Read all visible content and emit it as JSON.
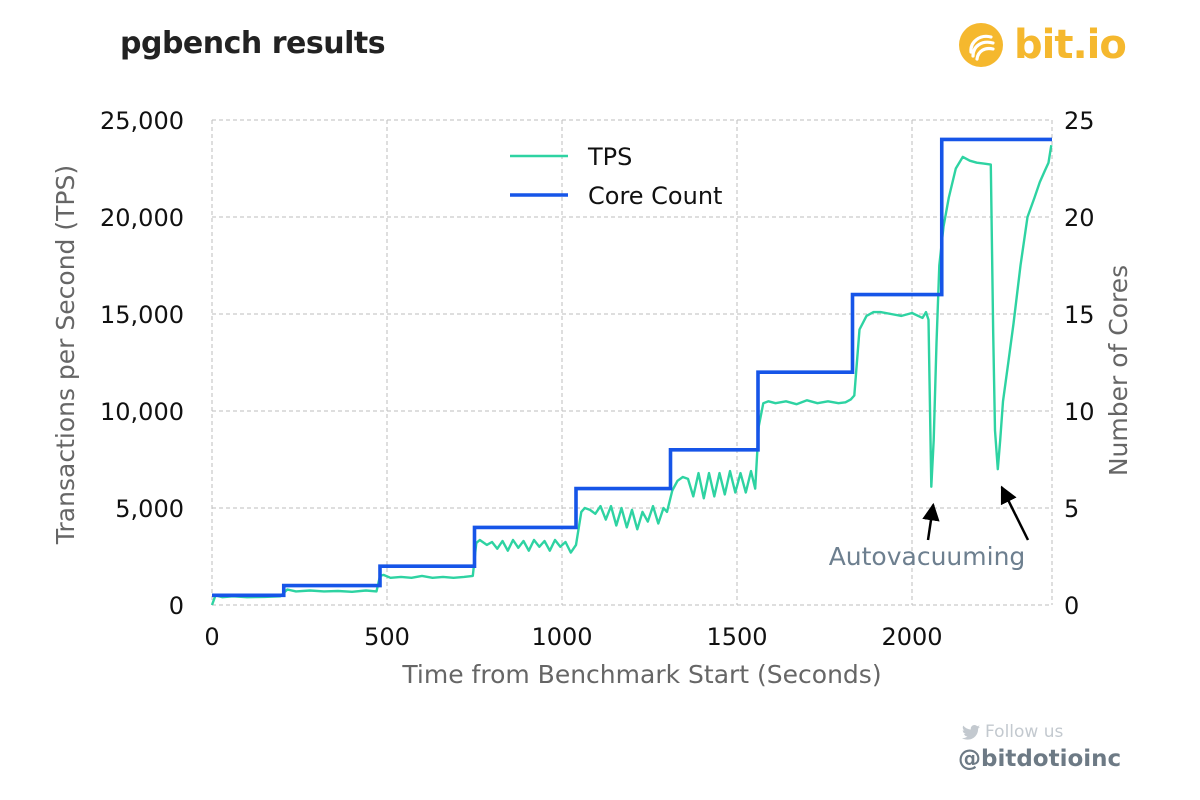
{
  "header": {
    "title": "pgbench results"
  },
  "brand": {
    "name": "bit.io",
    "logo_icon": "bitio-swirl-logo-icon",
    "color": "#f5b82e"
  },
  "footer": {
    "follow_label": "Follow us",
    "follow_icon": "twitter-bird-icon",
    "handle": "@bitdotioinc"
  },
  "colors": {
    "tps": "#2ed3a2",
    "cores": "#1655e8",
    "annotation": "#6d7f8f",
    "grid": "#bdbdbd"
  },
  "chart_data": {
    "type": "line",
    "xlabel": "Time from Benchmark Start (Seconds)",
    "ylabel": "Transactions per Second (TPS)",
    "y2label": "Number of Cores",
    "xlim": [
      0,
      2400
    ],
    "ylim": [
      0,
      25000
    ],
    "y2lim": [
      0,
      25
    ],
    "xticks": [
      0,
      500,
      1000,
      1500,
      2000
    ],
    "xtick_labels": [
      "0",
      "500",
      "1000",
      "1500",
      "2000"
    ],
    "yticks": [
      0,
      5000,
      10000,
      15000,
      20000,
      25000
    ],
    "ytick_labels": [
      "0",
      "5,000",
      "10,000",
      "15,000",
      "20,000",
      "25,000"
    ],
    "y2ticks": [
      0,
      5,
      10,
      15,
      20,
      25
    ],
    "y2tick_labels": [
      "0",
      "5",
      "10",
      "15",
      "20",
      "25"
    ],
    "grid": true,
    "legend": "top-center",
    "series": [
      {
        "name": "TPS",
        "axis": "left",
        "x": [
          0,
          10,
          30,
          60,
          100,
          150,
          195,
          215,
          240,
          280,
          320,
          360,
          400,
          440,
          470,
          480,
          490,
          510,
          540,
          570,
          600,
          630,
          660,
          690,
          720,
          745,
          755,
          765,
          785,
          800,
          815,
          830,
          845,
          860,
          875,
          890,
          905,
          920,
          935,
          950,
          965,
          980,
          995,
          1010,
          1025,
          1040,
          1055,
          1065,
          1080,
          1095,
          1110,
          1125,
          1140,
          1155,
          1170,
          1185,
          1200,
          1215,
          1230,
          1245,
          1260,
          1275,
          1290,
          1300,
          1315,
          1330,
          1345,
          1360,
          1375,
          1390,
          1405,
          1420,
          1435,
          1450,
          1465,
          1480,
          1495,
          1510,
          1525,
          1540,
          1552,
          1562,
          1575,
          1590,
          1610,
          1640,
          1670,
          1700,
          1730,
          1760,
          1790,
          1810,
          1825,
          1835,
          1850,
          1870,
          1890,
          1910,
          1940,
          1970,
          2000,
          2030,
          2040,
          2047,
          2055,
          2062,
          2070,
          2078,
          2090,
          2105,
          2125,
          2145,
          2165,
          2185,
          2205,
          2225,
          2232,
          2237,
          2245,
          2252,
          2260,
          2275,
          2290,
          2310,
          2330,
          2350,
          2365,
          2380,
          2390,
          2398
        ],
        "values": [
          0,
          500,
          400,
          450,
          400,
          420,
          450,
          800,
          700,
          750,
          700,
          720,
          680,
          750,
          700,
          1500,
          1550,
          1400,
          1450,
          1400,
          1500,
          1400,
          1450,
          1400,
          1450,
          1500,
          3200,
          3350,
          3100,
          3250,
          2900,
          3300,
          2800,
          3350,
          2950,
          3300,
          2800,
          3350,
          3000,
          3300,
          2800,
          3350,
          3000,
          3250,
          2700,
          3100,
          4800,
          5000,
          4900,
          4700,
          5100,
          4400,
          5100,
          4100,
          5000,
          4000,
          4900,
          3900,
          4800,
          4300,
          5100,
          4200,
          5000,
          4800,
          5900,
          6400,
          6600,
          6500,
          5600,
          6800,
          5500,
          6800,
          5600,
          6800,
          5700,
          6900,
          5800,
          6800,
          5800,
          6900,
          6000,
          9200,
          10400,
          10500,
          10400,
          10500,
          10350,
          10550,
          10400,
          10500,
          10400,
          10450,
          10600,
          10800,
          14200,
          14900,
          15100,
          15100,
          15000,
          14900,
          15050,
          14800,
          15100,
          14700,
          6100,
          8500,
          13500,
          17500,
          19500,
          21000,
          22500,
          23100,
          22900,
          22800,
          22750,
          22700,
          14000,
          9000,
          7000,
          8500,
          10500,
          12500,
          14500,
          17500,
          20000,
          21000,
          21800,
          22400,
          22800,
          23700
        ]
      },
      {
        "name": "Core Count",
        "axis": "right",
        "step": "post",
        "x": [
          0,
          205,
          480,
          750,
          1040,
          1310,
          1560,
          1830,
          2085,
          2400
        ],
        "values": [
          0.5,
          1,
          2,
          4,
          6,
          8,
          12,
          16,
          24,
          24
        ]
      }
    ],
    "annotations": [
      {
        "text": "Autovacuuming",
        "arrow_targets": [
          {
            "x": 2055,
            "y": 6100
          },
          {
            "x": 2245,
            "y": 7000
          }
        ]
      }
    ]
  }
}
